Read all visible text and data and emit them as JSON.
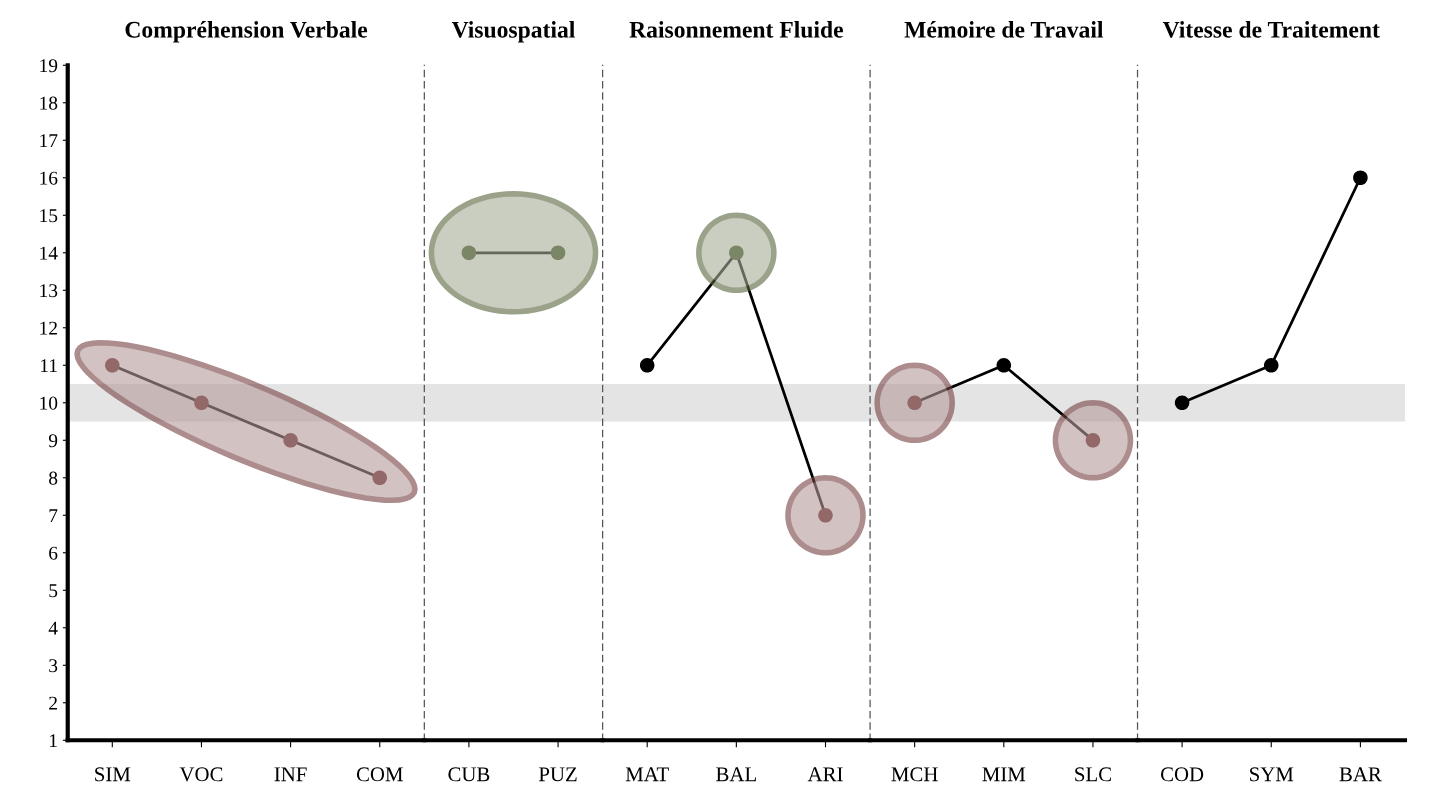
{
  "chart_data": [
    {
      "type": "line",
      "title": "Compréhension Verbale",
      "categories": [
        "SIM",
        "VOC",
        "INF",
        "COM"
      ],
      "ylim": [
        1,
        19
      ],
      "yticks": [
        1,
        2,
        3,
        4,
        5,
        6,
        7,
        8,
        9,
        10,
        11,
        12,
        13,
        14,
        15,
        16,
        17,
        18,
        19
      ],
      "grid": false,
      "marker": "circle",
      "line_style": "solid",
      "series": [
        {
          "color": "#000000",
          "colors": [
            "#5e1f1f",
            "#5e1f1f",
            "#5e1f1f",
            "#5e1f1f"
          ],
          "values": [
            11,
            10,
            9,
            8
          ]
        }
      ],
      "bands": [
        {
          "axis": "y",
          "from": 9.5,
          "to": 10.5,
          "color": "#e4e4e4"
        }
      ]
    },
    {
      "type": "line",
      "title": "Visuospatial",
      "categories": [
        "CUB",
        "PUZ"
      ],
      "ylim": [
        1,
        19
      ],
      "tick_labels": "x",
      "grid": false,
      "marker": "circle",
      "line_style": "solid",
      "series": [
        {
          "color": "#000000",
          "colors": [
            "#3a4a1a",
            "#3a4a1a"
          ],
          "values": [
            14,
            14
          ]
        }
      ],
      "bands": [
        {
          "axis": "y",
          "from": 9.5,
          "to": 10.5,
          "color": "#e4e4e4"
        }
      ]
    },
    {
      "type": "line",
      "title": "Raisonnement Fluide",
      "categories": [
        "MAT",
        "BAL",
        "ARI"
      ],
      "ylim": [
        1,
        19
      ],
      "tick_labels": "x",
      "grid": false,
      "marker": "circle",
      "line_style": "solid",
      "series": [
        {
          "color": "#000000",
          "colors": [
            "#000000",
            "#3a4a1a",
            "#5e1f1f"
          ],
          "values": [
            11,
            14,
            7
          ]
        }
      ],
      "bands": [
        {
          "axis": "y",
          "from": 9.5,
          "to": 10.5,
          "color": "#e4e4e4"
        }
      ]
    },
    {
      "type": "line",
      "title": "Mémoire de Travail",
      "categories": [
        "MCH",
        "MIM",
        "SLC"
      ],
      "ylim": [
        1,
        19
      ],
      "tick_labels": "x",
      "grid": false,
      "marker": "circle",
      "line_style": "solid",
      "series": [
        {
          "color": "#000000",
          "colors": [
            "#5e1f1f",
            "#000000",
            "#5e1f1f"
          ],
          "values": [
            10,
            11,
            9
          ]
        }
      ],
      "bands": [
        {
          "axis": "y",
          "from": 9.5,
          "to": 10.5,
          "color": "#e4e4e4"
        }
      ]
    },
    {
      "type": "line",
      "title": "Vitesse de Traitement",
      "categories": [
        "COD",
        "SYM",
        "BAR"
      ],
      "ylim": [
        1,
        19
      ],
      "tick_labels": "x",
      "grid": false,
      "marker": "circle",
      "line_style": "solid",
      "series": [
        {
          "color": "#000000",
          "colors": [
            "#000000",
            "#000000",
            "#000000"
          ],
          "values": [
            10,
            11,
            16
          ]
        }
      ],
      "bands": [
        {
          "axis": "y",
          "from": 9.5,
          "to": 10.5,
          "color": "#e4e4e4"
        }
      ]
    }
  ]
}
